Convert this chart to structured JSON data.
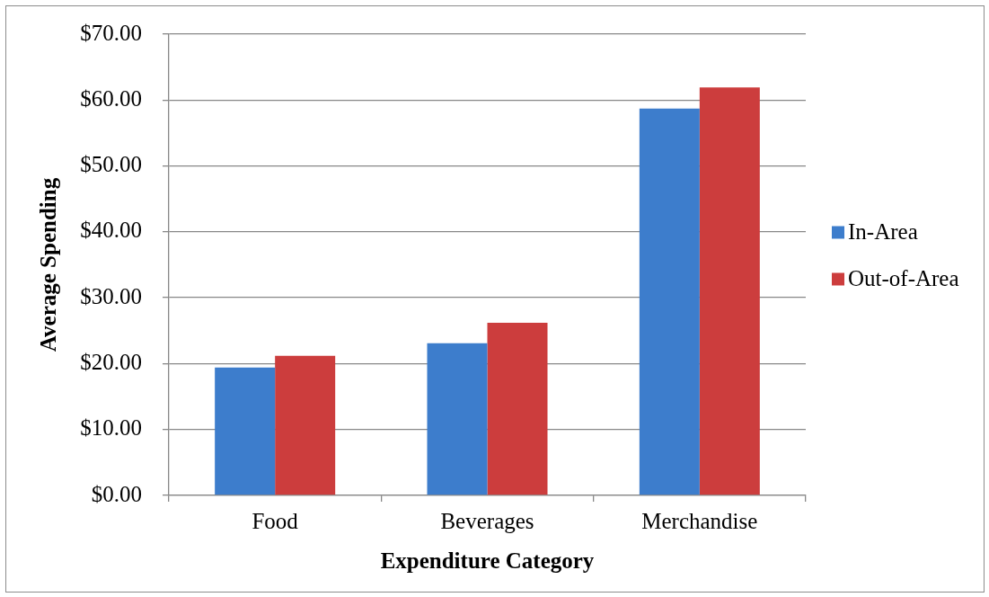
{
  "chart_data": {
    "type": "bar",
    "xlabel": "Expenditure Category",
    "ylabel": "Average Spending",
    "categories": [
      "Food",
      "Beverages",
      "Merchandise"
    ],
    "series": [
      {
        "name": "In-Area",
        "color": "#3d7dcc",
        "values": [
          19.4,
          23.1,
          58.7
        ]
      },
      {
        "name": "Out-of-Area",
        "color": "#cc3d3d",
        "values": [
          21.2,
          26.2,
          61.9
        ]
      }
    ],
    "ylim": [
      0,
      70
    ],
    "yticks": [
      {
        "value": 0,
        "label": "$0.00"
      },
      {
        "value": 10,
        "label": "$10.00"
      },
      {
        "value": 20,
        "label": "$20.00"
      },
      {
        "value": 30,
        "label": "$30.00"
      },
      {
        "value": 40,
        "label": "$40.00"
      },
      {
        "value": 50,
        "label": "$50.00"
      },
      {
        "value": 60,
        "label": "$60.00"
      },
      {
        "value": 70,
        "label": "$70.00"
      }
    ],
    "grid": "y",
    "legend": "right"
  }
}
